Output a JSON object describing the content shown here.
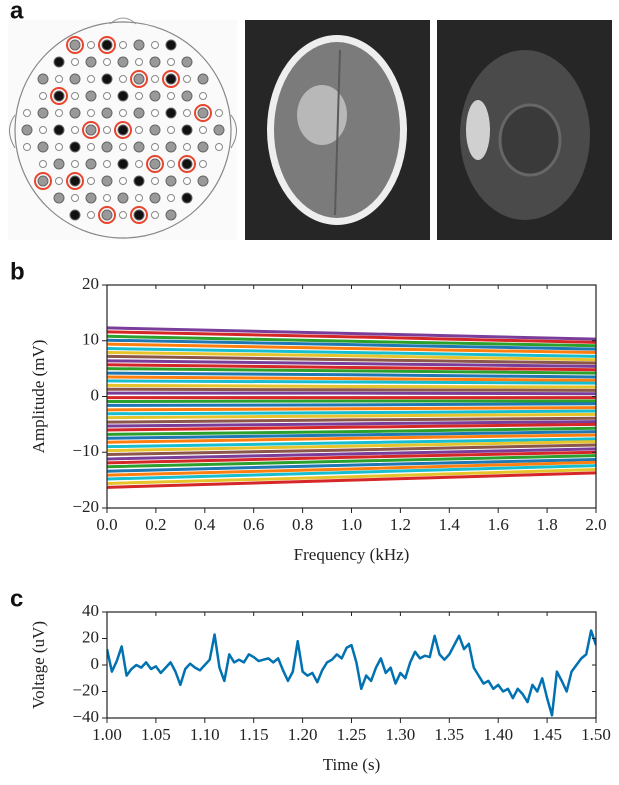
{
  "panel_a": {
    "label": "a"
  },
  "chart_data": [
    {
      "type": "line",
      "label": "b",
      "xlabel": "Frequency (kHz)",
      "ylabel": "Amplitude (mV)",
      "xlim": [
        0,
        2
      ],
      "ylim": [
        -20,
        20
      ],
      "xticks": [
        {
          "value": 0,
          "label": "0.0"
        },
        0.2,
        0.4,
        0.6,
        0.8,
        {
          "value": 1,
          "label": "1.0"
        },
        1.2,
        1.4,
        1.6,
        1.8,
        {
          "value": 2,
          "label": "2.0"
        }
      ],
      "yticks": [
        {
          "value": -20,
          "label": "−20"
        },
        {
          "value": -10,
          "label": "−10"
        },
        0,
        10,
        20
      ],
      "x": [
        0,
        1,
        2
      ],
      "series": [
        {
          "color": "#7a3d9a",
          "values": [
            12.3,
            11.3,
            10.3
          ]
        },
        {
          "color": "#d62728",
          "values": [
            11.6,
            10.7,
            9.7
          ]
        },
        {
          "color": "#2ca02c",
          "values": [
            10.8,
            9.9,
            9.1
          ]
        },
        {
          "color": "#1f77b4",
          "values": [
            10.1,
            9.3,
            8.5
          ]
        },
        {
          "color": "#ff7f0e",
          "values": [
            9.4,
            8.6,
            7.9
          ]
        },
        {
          "color": "#17becf",
          "values": [
            8.6,
            7.9,
            7.2
          ]
        },
        {
          "color": "#e6c32a",
          "values": [
            7.9,
            7.3,
            6.6
          ]
        },
        {
          "color": "#8c564b",
          "values": [
            7.2,
            6.6,
            6.0
          ]
        },
        {
          "color": "#7a3d9a",
          "values": [
            6.4,
            5.9,
            5.4
          ]
        },
        {
          "color": "#d62728",
          "values": [
            5.7,
            5.2,
            4.8
          ]
        },
        {
          "color": "#2ca02c",
          "values": [
            5.0,
            4.6,
            4.2
          ]
        },
        {
          "color": "#1f77b4",
          "values": [
            4.2,
            3.9,
            3.5
          ]
        },
        {
          "color": "#ff7f0e",
          "values": [
            3.5,
            3.2,
            2.9
          ]
        },
        {
          "color": "#17becf",
          "values": [
            2.8,
            2.6,
            2.4
          ]
        },
        {
          "color": "#e6c32a",
          "values": [
            2.0,
            1.8,
            1.7
          ]
        },
        {
          "color": "#8c564b",
          "values": [
            1.3,
            1.2,
            1.1
          ]
        },
        {
          "color": "#7a3d9a",
          "values": [
            0.6,
            0.6,
            0.5
          ]
        },
        {
          "color": "#d62728",
          "values": [
            -0.2,
            -0.2,
            -0.2
          ]
        },
        {
          "color": "#2ca02c",
          "values": [
            -0.9,
            -0.8,
            -0.8
          ]
        },
        {
          "color": "#1f77b4",
          "values": [
            -1.6,
            -1.5,
            -1.3
          ]
        },
        {
          "color": "#ff7f0e",
          "values": [
            -2.4,
            -2.2,
            -2.0
          ]
        },
        {
          "color": "#17becf",
          "values": [
            -3.1,
            -2.9,
            -2.6
          ]
        },
        {
          "color": "#e6c32a",
          "values": [
            -3.8,
            -3.5,
            -3.2
          ]
        },
        {
          "color": "#8c564b",
          "values": [
            -4.6,
            -4.2,
            -3.9
          ]
        },
        {
          "color": "#7a3d9a",
          "values": [
            -5.3,
            -4.9,
            -4.5
          ]
        },
        {
          "color": "#d62728",
          "values": [
            -6.0,
            -5.5,
            -5.0
          ]
        },
        {
          "color": "#2ca02c",
          "values": [
            -6.8,
            -6.3,
            -5.7
          ]
        },
        {
          "color": "#1f77b4",
          "values": [
            -7.5,
            -6.9,
            -6.3
          ]
        },
        {
          "color": "#ff7f0e",
          "values": [
            -8.2,
            -7.5,
            -6.9
          ]
        },
        {
          "color": "#17becf",
          "values": [
            -9.0,
            -8.3,
            -7.6
          ]
        },
        {
          "color": "#e6c32a",
          "values": [
            -9.7,
            -8.9,
            -8.1
          ]
        },
        {
          "color": "#8c564b",
          "values": [
            -10.4,
            -9.6,
            -8.7
          ]
        },
        {
          "color": "#7a3d9a",
          "values": [
            -11.2,
            -10.3,
            -9.4
          ]
        },
        {
          "color": "#d62728",
          "values": [
            -11.9,
            -10.9,
            -10.0
          ]
        },
        {
          "color": "#2ca02c",
          "values": [
            -12.6,
            -11.6,
            -10.6
          ]
        },
        {
          "color": "#1f77b4",
          "values": [
            -13.4,
            -12.3,
            -11.3
          ]
        },
        {
          "color": "#ff7f0e",
          "values": [
            -14.1,
            -13.0,
            -11.8
          ]
        },
        {
          "color": "#17becf",
          "values": [
            -14.8,
            -13.6,
            -12.4
          ]
        },
        {
          "color": "#e6c32a",
          "values": [
            -15.6,
            -14.4,
            -13.1
          ]
        },
        {
          "color": "#d62728",
          "values": [
            -16.3,
            -15.0,
            -13.7
          ]
        }
      ]
    },
    {
      "type": "line",
      "label": "c",
      "xlabel": "Time (s)",
      "ylabel": "Voltage (uV)",
      "xlim": [
        1,
        1.5
      ],
      "ylim": [
        -40,
        40
      ],
      "xticks": [
        {
          "value": 1,
          "label": "1.00"
        },
        1.05,
        {
          "value": 1.1,
          "label": "1.10"
        },
        1.15,
        {
          "value": 1.2,
          "label": "1.20"
        },
        1.25,
        {
          "value": 1.3,
          "label": "1.30"
        },
        1.35,
        {
          "value": 1.4,
          "label": "1.40"
        },
        1.45,
        {
          "value": 1.5,
          "label": "1.50"
        }
      ],
      "yticks": [
        {
          "value": -40,
          "label": "−40"
        },
        {
          "value": -20,
          "label": "−20"
        },
        0,
        20,
        40
      ],
      "x": [
        1.0,
        1.005,
        1.01,
        1.015,
        1.02,
        1.025,
        1.03,
        1.035,
        1.04,
        1.045,
        1.05,
        1.055,
        1.06,
        1.065,
        1.07,
        1.075,
        1.08,
        1.085,
        1.09,
        1.095,
        1.1,
        1.105,
        1.11,
        1.115,
        1.12,
        1.125,
        1.13,
        1.135,
        1.14,
        1.145,
        1.15,
        1.155,
        1.16,
        1.165,
        1.17,
        1.175,
        1.18,
        1.185,
        1.19,
        1.195,
        1.2,
        1.205,
        1.21,
        1.215,
        1.22,
        1.225,
        1.23,
        1.235,
        1.24,
        1.245,
        1.25,
        1.255,
        1.26,
        1.265,
        1.27,
        1.275,
        1.28,
        1.285,
        1.29,
        1.295,
        1.3,
        1.305,
        1.31,
        1.315,
        1.32,
        1.325,
        1.33,
        1.335,
        1.34,
        1.345,
        1.35,
        1.355,
        1.36,
        1.365,
        1.37,
        1.375,
        1.38,
        1.385,
        1.39,
        1.395,
        1.4,
        1.405,
        1.41,
        1.415,
        1.42,
        1.425,
        1.43,
        1.435,
        1.44,
        1.445,
        1.45,
        1.455,
        1.46,
        1.465,
        1.47,
        1.475,
        1.48,
        1.485,
        1.49,
        1.495,
        1.5
      ],
      "series": [
        {
          "color": "#0072b2",
          "values": [
            12,
            -5,
            3,
            14,
            -8,
            -3,
            0,
            -2,
            2,
            -3,
            -1,
            -6,
            -2,
            2,
            -5,
            -15,
            -3,
            1,
            -2,
            -4,
            0,
            4,
            23,
            -2,
            -12,
            8,
            2,
            4,
            2,
            8,
            6,
            3,
            4,
            5,
            2,
            5,
            -4,
            -12,
            -5,
            18,
            -5,
            -8,
            -6,
            -13,
            -4,
            2,
            4,
            8,
            5,
            13,
            15,
            2,
            -18,
            -8,
            -12,
            -2,
            5,
            -6,
            -2,
            -14,
            -6,
            -10,
            2,
            10,
            5,
            7,
            6,
            22,
            8,
            4,
            8,
            15,
            22,
            12,
            16,
            -2,
            -8,
            -14,
            -12,
            -18,
            -15,
            -20,
            -18,
            -25,
            -18,
            -22,
            -28,
            -15,
            -20,
            -10,
            -25,
            -38,
            -5,
            -12,
            -20,
            -5,
            0,
            5,
            8,
            26,
            15
          ]
        }
      ]
    }
  ]
}
